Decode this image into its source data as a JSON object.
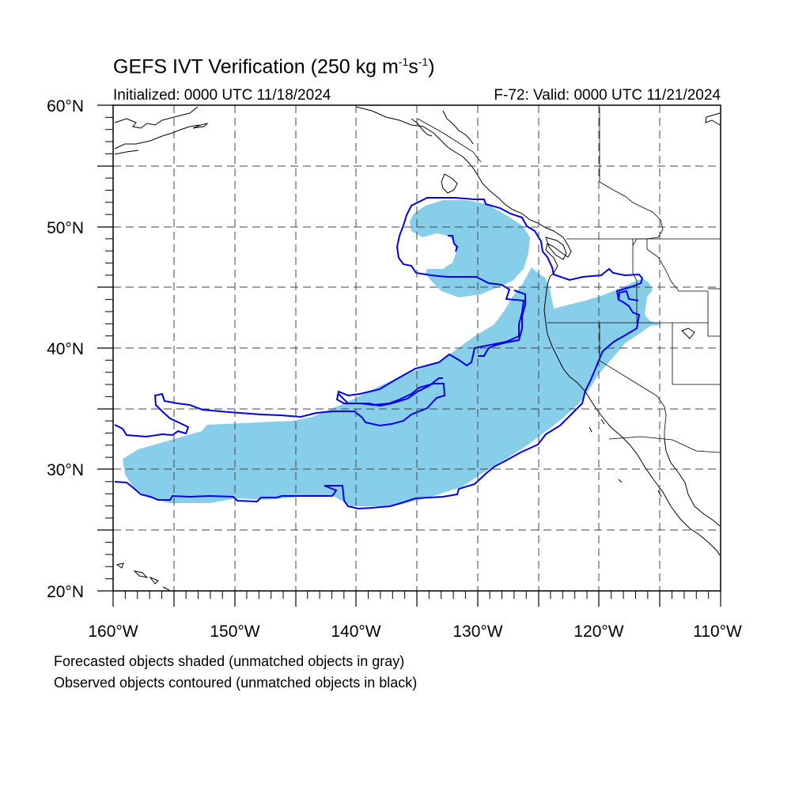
{
  "title": {
    "main": "GEFS IVT Verification (250 kg m",
    "exp1": "-1",
    "mid": "s",
    "exp2": "-1",
    "close": ")"
  },
  "init_label": "Initialized: 0000 UTC 11/18/2024",
  "valid_label": "F-72: Valid: 0000 UTC 11/21/2024",
  "lat_labels": [
    "60°N",
    "50°N",
    "40°N",
    "30°N",
    "20°N"
  ],
  "lon_labels": [
    "160°W",
    "150°W",
    "140°W",
    "130°W",
    "120°W",
    "110°W"
  ],
  "captions": [
    "Forecasted objects shaded (unmatched objects in gray)",
    "Observed objects contoured (unmatched objects in black)"
  ],
  "colors": {
    "forecast_fill": "#87ceeb",
    "observed_contour": "#0000ee",
    "coast": "#000000",
    "grid": "#444444"
  },
  "map": {
    "projection": "cylindrical equidistant",
    "lon_range": [
      -160,
      -110
    ],
    "lat_range": [
      20,
      60
    ],
    "grid_spacing_deg": 5,
    "grid_style": "dashed"
  }
}
